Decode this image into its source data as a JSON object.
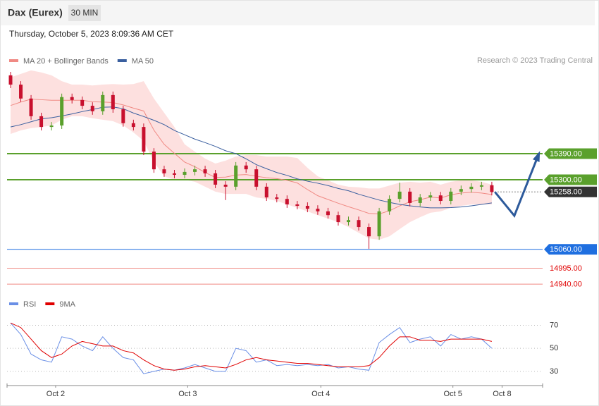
{
  "header": {
    "instrument": "Dax (Eurex)",
    "interval": "30 MIN",
    "timestamp": "Thursday, October 5, 2023 8:09:36 AM CET"
  },
  "chart_data": [
    {
      "type": "candlestick",
      "annotation": "Research © 2023 Trading Central",
      "open": [
        15660,
        15628,
        15580,
        15519,
        15482,
        15487,
        15585,
        15575,
        15555,
        15536,
        15592,
        15543,
        15495,
        15482,
        15397,
        15336,
        15322,
        15317,
        15327,
        15336,
        15322,
        15283,
        15276,
        15349,
        15336,
        15276,
        15239,
        15234,
        15215,
        15210,
        15200,
        15191,
        15178,
        15154,
        15161,
        15137,
        15105,
        15191,
        15234,
        15259,
        15220,
        15239,
        15246,
        15227,
        15259,
        15268,
        15276,
        15281
      ],
      "high": [
        15672,
        15640,
        15592,
        15531,
        15499,
        15597,
        15597,
        15587,
        15567,
        15604,
        15604,
        15555,
        15507,
        15494,
        15409,
        15348,
        15334,
        15339,
        15348,
        15348,
        15334,
        15295,
        15361,
        15361,
        15348,
        15288,
        15251,
        15246,
        15227,
        15222,
        15212,
        15203,
        15190,
        15173,
        15173,
        15149,
        15203,
        15246,
        15290,
        15271,
        15251,
        15258,
        15258,
        15271,
        15280,
        15288,
        15293,
        15293
      ],
      "low": [
        15616,
        15568,
        15507,
        15470,
        15470,
        15475,
        15563,
        15543,
        15524,
        15524,
        15531,
        15483,
        15470,
        15385,
        15324,
        15310,
        15305,
        15305,
        15315,
        15310,
        15271,
        15230,
        15264,
        15324,
        15264,
        15227,
        15222,
        15203,
        15198,
        15188,
        15179,
        15166,
        15142,
        15142,
        15125,
        15062,
        15093,
        15179,
        15222,
        15208,
        15208,
        15227,
        15215,
        15215,
        15247,
        15256,
        15264,
        15246
      ],
      "close": [
        15628,
        15580,
        15519,
        15482,
        15487,
        15585,
        15575,
        15555,
        15536,
        15592,
        15543,
        15495,
        15482,
        15397,
        15336,
        15322,
        15317,
        15327,
        15336,
        15322,
        15283,
        15276,
        15349,
        15336,
        15276,
        15239,
        15234,
        15215,
        15210,
        15200,
        15191,
        15178,
        15154,
        15161,
        15137,
        15105,
        15191,
        15234,
        15259,
        15220,
        15239,
        15246,
        15227,
        15259,
        15268,
        15276,
        15281,
        15258
      ],
      "up_color": "#5aa02c",
      "down_color": "#c8102e",
      "series": [
        {
          "name": "MA 20 + Bollinger Bands",
          "color": "#f08a84",
          "band_color": "#fde0df",
          "values": [
            15556,
            15568,
            15578,
            15576,
            15574,
            15574,
            15574,
            15574,
            15569,
            15568,
            15566,
            15558,
            15547,
            15537,
            15471,
            15422,
            15391,
            15361,
            15345,
            15325,
            15308,
            15309,
            15316,
            15318,
            15312,
            15307,
            15304,
            15298,
            15289,
            15266,
            15245,
            15232,
            15219,
            15207,
            15196,
            15184,
            15182,
            15193,
            15210,
            15224,
            15231,
            15240,
            15237,
            15248,
            15254,
            15257,
            15254,
            15249
          ],
          "upper": [
            15653,
            15665,
            15677,
            15670,
            15660,
            15640,
            15628,
            15628,
            15625,
            15628,
            15630,
            15628,
            15630,
            15640,
            15580,
            15531,
            15482,
            15422,
            15397,
            15373,
            15356,
            15366,
            15380,
            15385,
            15385,
            15380,
            15380,
            15380,
            15375,
            15341,
            15312,
            15298,
            15283,
            15276,
            15274,
            15270,
            15270,
            15280,
            15290,
            15293,
            15290,
            15293,
            15283,
            15293,
            15298,
            15298,
            15293,
            15283
          ],
          "lower": [
            15458,
            15470,
            15478,
            15482,
            15487,
            15507,
            15519,
            15519,
            15512,
            15507,
            15502,
            15487,
            15463,
            15434,
            15361,
            15312,
            15300,
            15300,
            15293,
            15276,
            15259,
            15251,
            15251,
            15251,
            15239,
            15234,
            15227,
            15215,
            15203,
            15191,
            15178,
            15166,
            15154,
            15137,
            15117,
            15098,
            15093,
            15105,
            15130,
            15154,
            15171,
            15186,
            15191,
            15203,
            15210,
            15215,
            15215,
            15215
          ]
        },
        {
          "name": "MA 50",
          "color": "#3a5f9f",
          "values": [
            15482,
            15490,
            15500,
            15510,
            15514,
            15520,
            15527,
            15535,
            15542,
            15550,
            15551,
            15545,
            15530,
            15518,
            15505,
            15490,
            15470,
            15455,
            15440,
            15428,
            15415,
            15400,
            15390,
            15372,
            15352,
            15338,
            15325,
            15315,
            15303,
            15295,
            15288,
            15280,
            15270,
            15262,
            15250,
            15240,
            15230,
            15222,
            15215,
            15210,
            15206,
            15203,
            15203,
            15204,
            15206,
            15210,
            15215,
            15220
          ]
        }
      ],
      "levels": {
        "values": [
          15390,
          15300,
          15258,
          15060,
          14995,
          14940
        ],
        "value_labels": [
          "15390.00",
          "15300.00",
          "15258.00",
          "15060.00",
          "14995.00",
          "14940.00"
        ],
        "colors": [
          "#5aa02c",
          "#5aa02c",
          "#333333",
          "#1f6fe0",
          "#f08a84",
          "#f08a84"
        ],
        "label_colors": [
          "#5aa02c",
          "#5aa02c",
          "#333333",
          "#1f6fe0",
          "#e00000",
          "#e00000"
        ]
      },
      "forecast": {
        "values": [
          15258,
          15176,
          15390
        ],
        "color": "#2d5a9b"
      },
      "ylim": [
        14916,
        15684
      ],
      "xticks": [
        {
          "value": 4.4,
          "label": "Oct 2"
        },
        {
          "value": 17.3,
          "label": "Oct 3"
        },
        {
          "value": 30.3,
          "label": "Oct 4"
        },
        {
          "value": 43.2,
          "label": "Oct 5"
        },
        {
          "value": 48,
          "label": "Oct 8"
        }
      ]
    },
    {
      "type": "line",
      "series": [
        {
          "name": "RSI",
          "color": "#6a8fe6",
          "values": [
            72,
            62,
            45,
            40,
            38,
            60,
            58,
            52,
            48,
            60,
            50,
            42,
            40,
            28,
            30,
            32,
            31,
            33,
            36,
            33,
            30,
            30,
            50,
            48,
            38,
            40,
            35,
            36,
            35,
            36,
            35,
            36,
            33,
            34,
            32,
            31,
            55,
            62,
            68,
            55,
            58,
            60,
            52,
            62,
            58,
            60,
            58,
            50
          ]
        },
        {
          "name": "9MA",
          "color": "#e00000",
          "values": [
            72,
            68,
            58,
            48,
            42,
            45,
            52,
            56,
            54,
            52,
            52,
            48,
            46,
            40,
            35,
            32,
            31,
            32,
            34,
            35,
            34,
            33,
            36,
            40,
            42,
            40,
            39,
            38,
            37,
            37,
            36,
            35,
            34,
            34,
            34,
            35,
            42,
            52,
            60,
            60,
            57,
            57,
            56,
            58,
            58,
            58,
            58,
            56
          ]
        }
      ],
      "ylim": [
        22,
        77
      ],
      "yticks": [
        30,
        50,
        70
      ],
      "grid": true
    }
  ]
}
